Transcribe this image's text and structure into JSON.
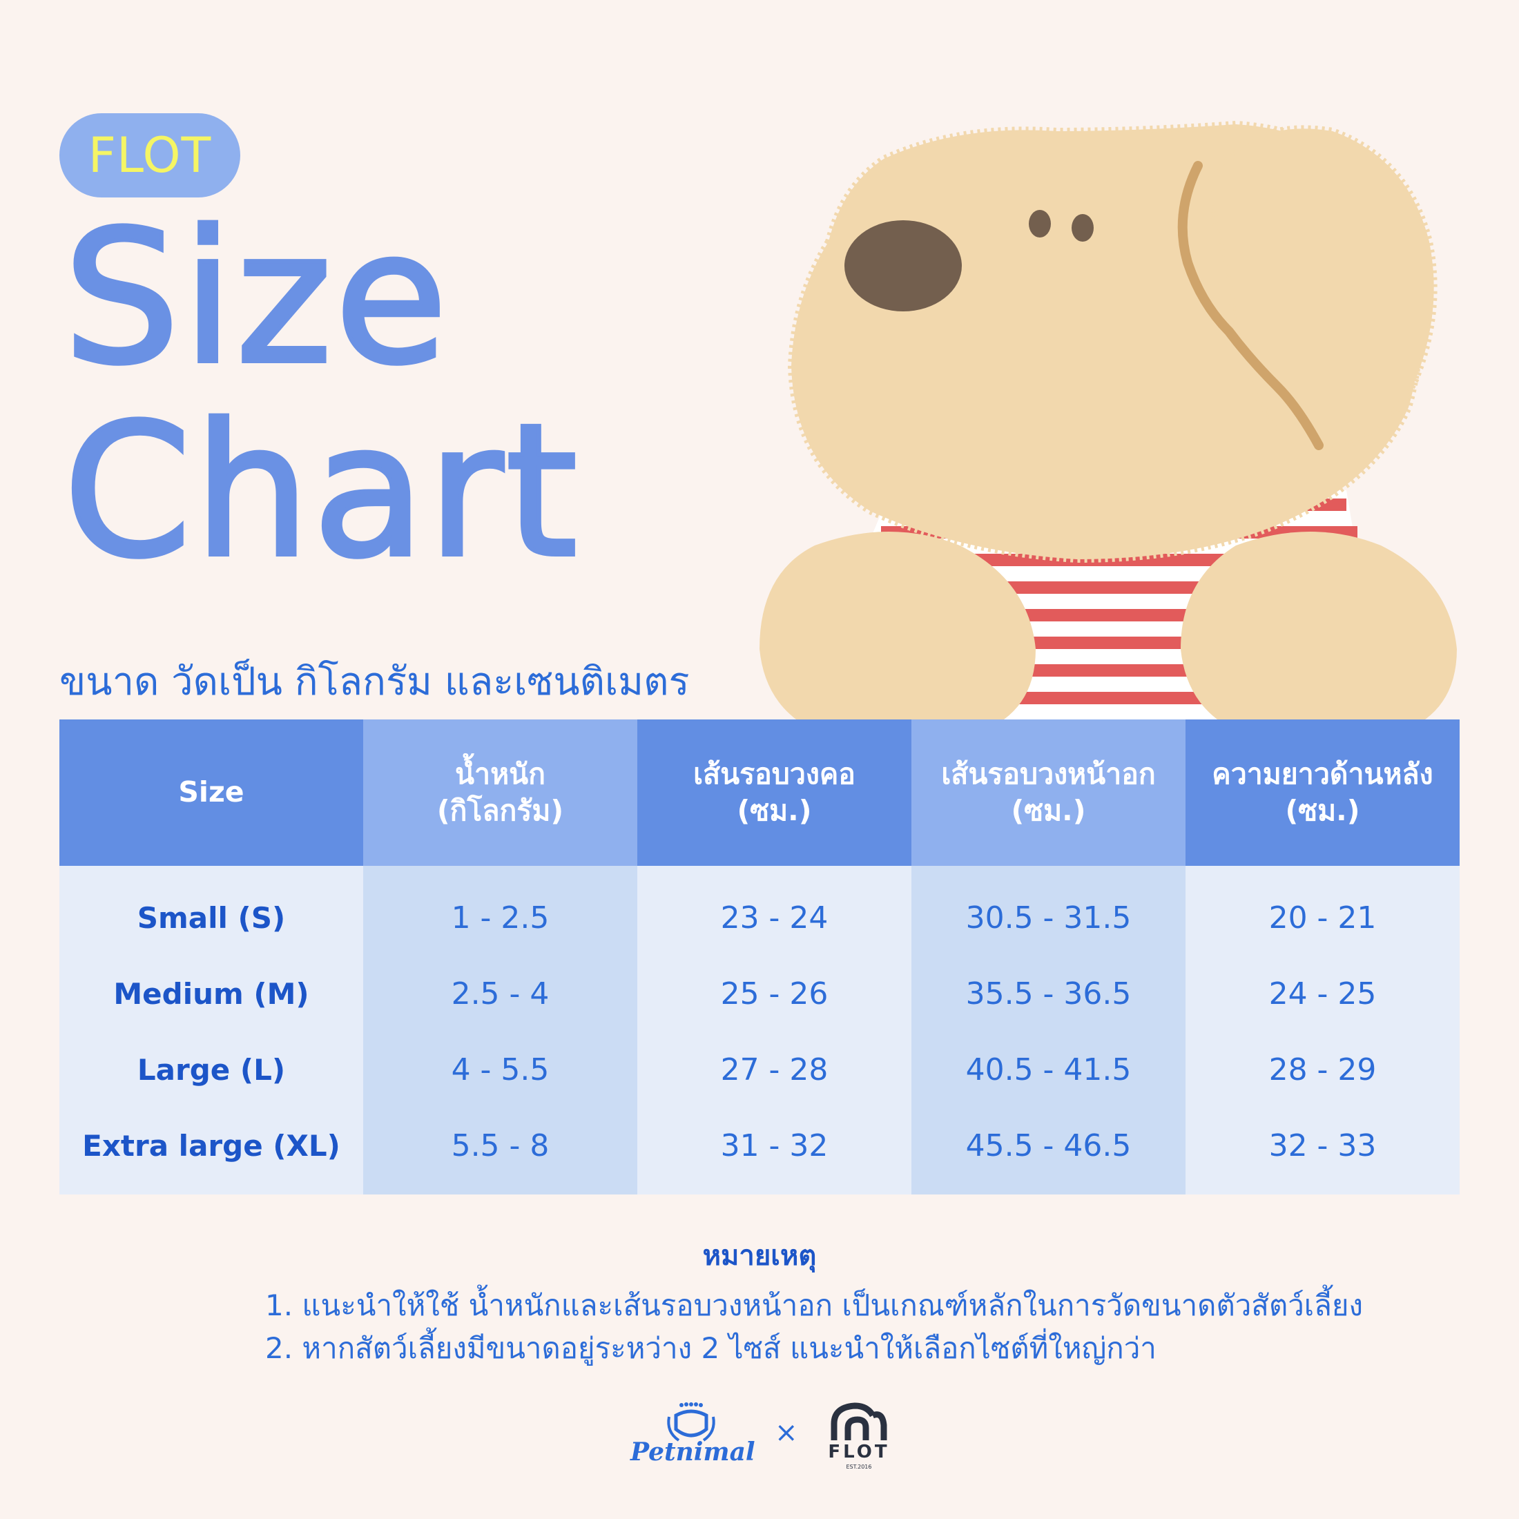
{
  "brand": {
    "pill_text": "FLOT"
  },
  "title": {
    "line1": "Size",
    "line2": "Chart"
  },
  "subtitle": "ขนาด วัดเป็น กิโลกรัม และเซนติเมตร",
  "colors": {
    "background": "#fbf3ef",
    "title": "#6a91e4",
    "header_dark": "#628ee3",
    "header_light": "#8fb0ee",
    "row_light": "#e6edf9",
    "row_mid": "#cbdcf4",
    "text": "#2c6cd8",
    "stripe_red": "#e25b5b",
    "dog_fur": "#f2d8ad"
  },
  "table": {
    "headers": [
      {
        "line1": "Size",
        "line2": ""
      },
      {
        "line1": "น้ำหนัก",
        "line2": "(กิโลกรัม)"
      },
      {
        "line1": "เส้นรอบวงคอ",
        "line2": "(ซม.)"
      },
      {
        "line1": "เส้นรอบวงหน้าอก",
        "line2": "(ซม.)"
      },
      {
        "line1": "ความยาวด้านหลัง",
        "line2": "(ซม.)"
      }
    ],
    "rows": [
      {
        "size": "Small (S)",
        "weight": "1 - 2.5",
        "neck": "23 - 24",
        "chest": "30.5 - 31.5",
        "back": "20 - 21"
      },
      {
        "size": "Medium (M)",
        "weight": "2.5 - 4",
        "neck": "25 - 26",
        "chest": "35.5 - 36.5",
        "back": "24 - 25"
      },
      {
        "size": "Large (L)",
        "weight": "4 - 5.5",
        "neck": "27 - 28",
        "chest": "40.5 - 41.5",
        "back": "28 - 29"
      },
      {
        "size": "Extra large (XL)",
        "weight": "5.5 - 8",
        "neck": "31 - 32",
        "chest": "45.5 - 46.5",
        "back": "32 - 33"
      }
    ]
  },
  "notes": {
    "title": "หมายเหตุ",
    "items": [
      "1. แนะนำให้ใช้ น้ำหนักและเส้นรอบวงหน้าอก เป็นเกณฑ์หลักในการวัดขนาดตัวสัตว์เลี้ยง",
      "2. หากสัตว์เลี้ยงมีขนาดอยู่ระหว่าง 2 ไซส์ แนะนำให้เลือกไซต์ที่ใหญ่กว่า"
    ]
  },
  "footer": {
    "logo_left": "Petnimal",
    "separator": "×",
    "logo_right": "FLOT",
    "logo_right_sub": "EST.2016"
  },
  "icons": {
    "mascot": "dog-mascot-illustration",
    "left_logo": "petnimal-logo-icon",
    "right_logo": "flot-logo-icon"
  }
}
